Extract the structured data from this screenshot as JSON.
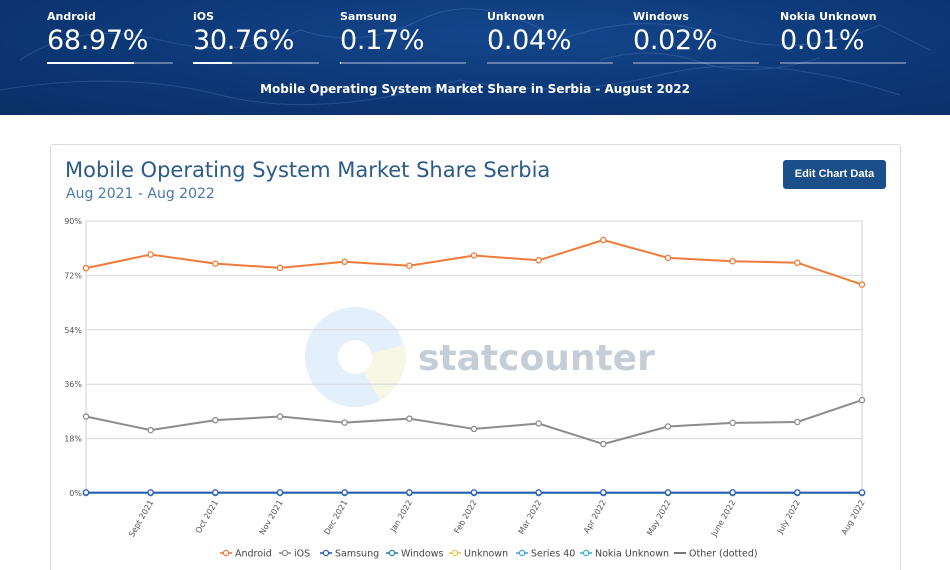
{
  "banner": {
    "stats": [
      {
        "label": "Android",
        "value": "68.97%",
        "share": 68.97
      },
      {
        "label": "iOS",
        "value": "30.76%",
        "share": 30.76
      },
      {
        "label": "Samsung",
        "value": "0.17%",
        "share": 0.17
      },
      {
        "label": "Unknown",
        "value": "0.04%",
        "share": 0.04
      },
      {
        "label": "Windows",
        "value": "0.02%",
        "share": 0.02
      },
      {
        "label": "Nokia Unknown",
        "value": "0.01%",
        "share": 0.01
      }
    ],
    "caption": "Mobile Operating System Market Share in Serbia - August 2022"
  },
  "chart_header": {
    "title": "Mobile Operating System Market Share Serbia",
    "subtitle": "Aug 2021 - Aug 2022",
    "edit_button": "Edit Chart Data"
  },
  "watermark": "statcounter",
  "colors": {
    "banner_bg": "#0d3a7a",
    "button": "#1b4f8a",
    "title": "#2c5a8c",
    "android": "#ef7b3a",
    "ios": "#8c8c8c",
    "samsung": "#2f5db3",
    "windows": "#2f86b0",
    "unknown": "#f0c44c",
    "series40": "#4aa3df",
    "nokia_unknown": "#3bb3d6",
    "other": "#555555"
  },
  "chart_data": {
    "type": "line",
    "x": [
      "Aug 2021",
      "Sept 2021",
      "Oct 2021",
      "Nov 2021",
      "Dec 2021",
      "Jan 2022",
      "Feb 2022",
      "Mar 2022",
      "Apr 2022",
      "May 2022",
      "June 2022",
      "July 2022",
      "Aug 2022"
    ],
    "y_ticks": [
      "0%",
      "18%",
      "36%",
      "54%",
      "72%",
      "90%"
    ],
    "ylim": [
      0,
      90
    ],
    "grid": true,
    "legend_position": "bottom",
    "series": [
      {
        "name": "Android",
        "color": "#ef7b3a",
        "values": [
          74.4,
          78.9,
          75.9,
          74.5,
          76.5,
          75.2,
          78.6,
          77.0,
          83.7,
          77.8,
          76.7,
          76.2,
          68.97
        ]
      },
      {
        "name": "iOS",
        "color": "#8c8c8c",
        "values": [
          25.3,
          20.8,
          24.1,
          25.3,
          23.3,
          24.6,
          21.2,
          23.0,
          16.2,
          22.0,
          23.2,
          23.5,
          30.76
        ]
      },
      {
        "name": "Samsung",
        "color": "#2f5db3",
        "values": [
          0.2,
          0.2,
          0.2,
          0.2,
          0.2,
          0.2,
          0.2,
          0.2,
          0.2,
          0.2,
          0.2,
          0.2,
          0.17
        ]
      },
      {
        "name": "Windows",
        "color": "#2f86b0",
        "values": [
          0.05,
          0.05,
          0.05,
          0.04,
          0.04,
          0.04,
          0.03,
          0.03,
          0.03,
          0.03,
          0.02,
          0.02,
          0.02
        ]
      },
      {
        "name": "Unknown",
        "color": "#f0c44c",
        "values": [
          0.1,
          0.1,
          0.1,
          0.1,
          0.1,
          0.1,
          0.1,
          0.1,
          0.1,
          0.1,
          0.05,
          0.05,
          0.04
        ]
      },
      {
        "name": "Series 40",
        "color": "#4aa3df",
        "values": [
          0.02,
          0.02,
          0.02,
          0.02,
          0.02,
          0.02,
          0.01,
          0.01,
          0.01,
          0.01,
          0.01,
          0.01,
          0.01
        ]
      },
      {
        "name": "Nokia Unknown",
        "color": "#3bb3d6",
        "values": [
          0.02,
          0.02,
          0.02,
          0.02,
          0.02,
          0.02,
          0.01,
          0.01,
          0.01,
          0.01,
          0.01,
          0.01,
          0.01
        ]
      }
    ],
    "legend": [
      "Android",
      "iOS",
      "Samsung",
      "Windows",
      "Unknown",
      "Series 40",
      "Nokia Unknown",
      "Other (dotted)"
    ]
  }
}
